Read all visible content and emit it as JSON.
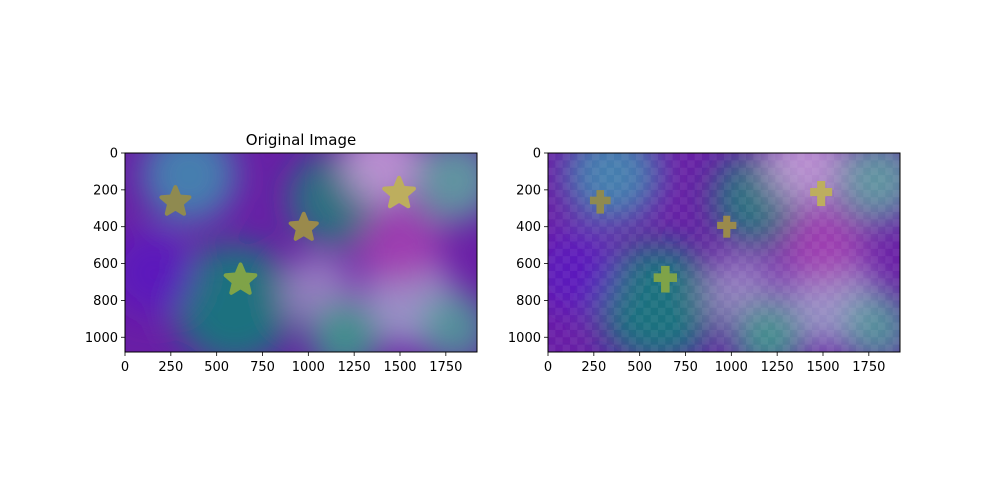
{
  "chart_data": [
    {
      "type": "image",
      "title": "Original Image",
      "xlim": [
        0,
        1920
      ],
      "ylim": [
        1080,
        0
      ],
      "xticks": [
        0,
        250,
        500,
        750,
        1000,
        1250,
        1500,
        1750
      ],
      "yticks": [
        0,
        200,
        400,
        600,
        800,
        1000
      ],
      "xtick_labels": [
        "0",
        "250",
        "500",
        "750",
        "1000",
        "1250",
        "1500",
        "1750"
      ],
      "ytick_labels": [
        "0",
        "200",
        "400",
        "600",
        "800",
        "1000"
      ],
      "stars": [
        {
          "x": 275,
          "y": 265,
          "r": 80,
          "color": "#8f8a50"
        },
        {
          "x": 975,
          "y": 405,
          "r": 75,
          "color": "#9a8a4c"
        },
        {
          "x": 630,
          "y": 690,
          "r": 85,
          "color": "#7fa348"
        },
        {
          "x": 1495,
          "y": 220,
          "r": 85,
          "color": "#bdae5e"
        }
      ]
    },
    {
      "type": "image",
      "title": "",
      "pixelated": true,
      "xlim": [
        0,
        1920
      ],
      "ylim": [
        1080,
        0
      ],
      "xticks": [
        0,
        250,
        500,
        750,
        1000,
        1250,
        1500,
        1750
      ],
      "yticks": [
        0,
        200,
        400,
        600,
        800,
        1000
      ],
      "xtick_labels": [
        "0",
        "250",
        "500",
        "750",
        "1000",
        "1250",
        "1500",
        "1750"
      ],
      "ytick_labels": [
        "0",
        "200",
        "400",
        "600",
        "800",
        "1000"
      ],
      "stars": [
        {
          "x": 285,
          "y": 265,
          "r": 75,
          "color": "#8f8a50"
        },
        {
          "x": 975,
          "y": 400,
          "r": 70,
          "color": "#9a8a4c"
        },
        {
          "x": 640,
          "y": 685,
          "r": 85,
          "color": "#7fa348"
        },
        {
          "x": 1490,
          "y": 220,
          "r": 80,
          "color": "#bdae5e"
        }
      ]
    }
  ],
  "background_blobs": [
    {
      "x": 350,
      "y": 120,
      "r": 260,
      "color": "#3f8fb0"
    },
    {
      "x": 1150,
      "y": 250,
      "r": 260,
      "color": "#1f7f7a"
    },
    {
      "x": 1400,
      "y": 60,
      "r": 220,
      "color": "#c89fd8"
    },
    {
      "x": 1800,
      "y": 150,
      "r": 230,
      "color": "#5fa8a0"
    },
    {
      "x": 600,
      "y": 820,
      "r": 330,
      "color": "#138078"
    },
    {
      "x": 1050,
      "y": 750,
      "r": 200,
      "color": "#9c8bc4"
    },
    {
      "x": 1550,
      "y": 800,
      "r": 250,
      "color": "#a6a2cf"
    },
    {
      "x": 1800,
      "y": 950,
      "r": 200,
      "color": "#4f9d98"
    },
    {
      "x": 1500,
      "y": 500,
      "r": 230,
      "color": "#a53fb2"
    },
    {
      "x": 150,
      "y": 650,
      "r": 230,
      "color": "#5a14c0"
    },
    {
      "x": 1200,
      "y": 1000,
      "r": 200,
      "color": "#3aa088"
    }
  ],
  "base_color": "#6a1fa6"
}
